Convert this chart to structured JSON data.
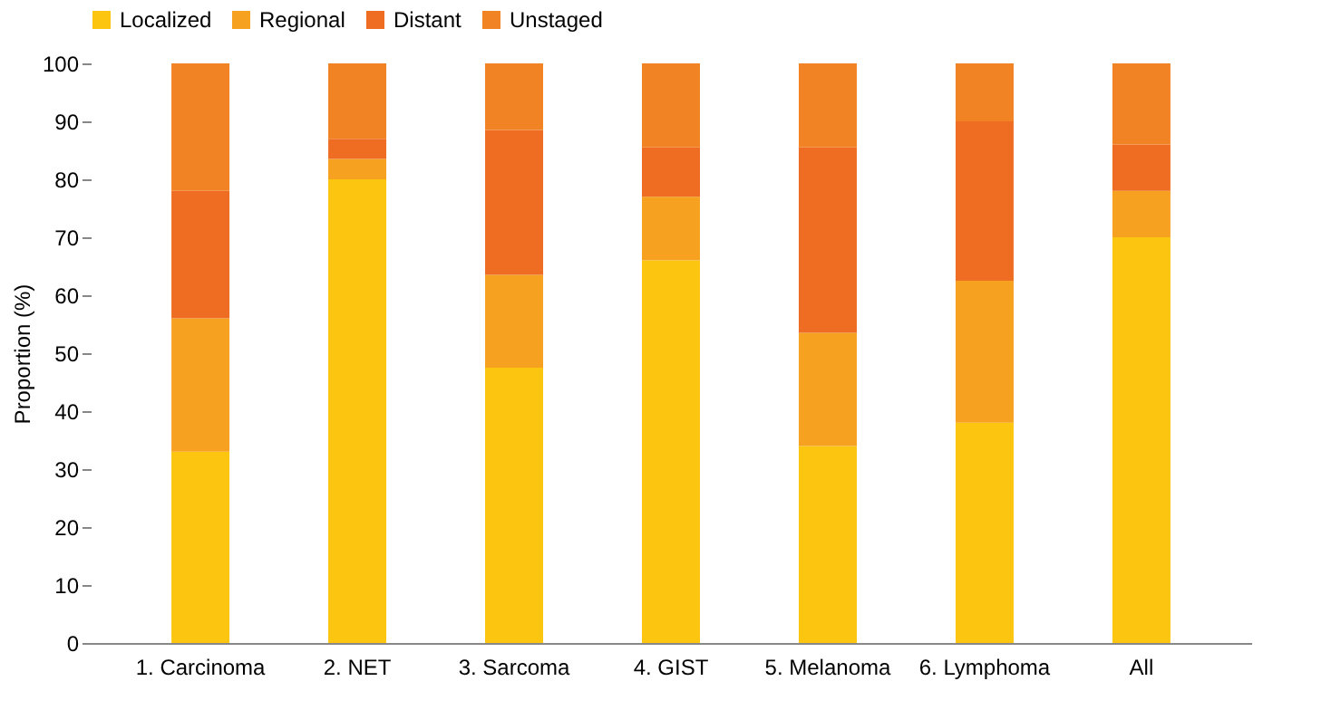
{
  "chart_data": {
    "type": "bar",
    "stacked": true,
    "ylabel": "Proportion (%)",
    "categories": [
      "1. Carcinoma",
      "2. NET",
      "3. Sarcoma",
      "4. GIST",
      "5. Melanoma",
      "6. Lymphoma",
      "All"
    ],
    "series": [
      {
        "name": "Localized",
        "color": "#fcc50f",
        "values": [
          33,
          80,
          47.5,
          66,
          34,
          38,
          70
        ]
      },
      {
        "name": "Regional",
        "color": "#f6a11f",
        "values": [
          23,
          3.5,
          16,
          11,
          19.5,
          24.5,
          8
        ]
      },
      {
        "name": "Distant",
        "color": "#ef6d22",
        "values": [
          22,
          3.5,
          25,
          8.5,
          32,
          27.5,
          8
        ]
      },
      {
        "name": "Unstaged",
        "color": "#f28324",
        "values": [
          22,
          13,
          11.5,
          14.5,
          14.5,
          10,
          14
        ]
      }
    ],
    "ylim": [
      0,
      100
    ],
    "yticks": [
      0,
      10,
      20,
      30,
      40,
      50,
      60,
      70,
      80,
      90,
      100
    ],
    "grid": false,
    "legend": "top"
  }
}
